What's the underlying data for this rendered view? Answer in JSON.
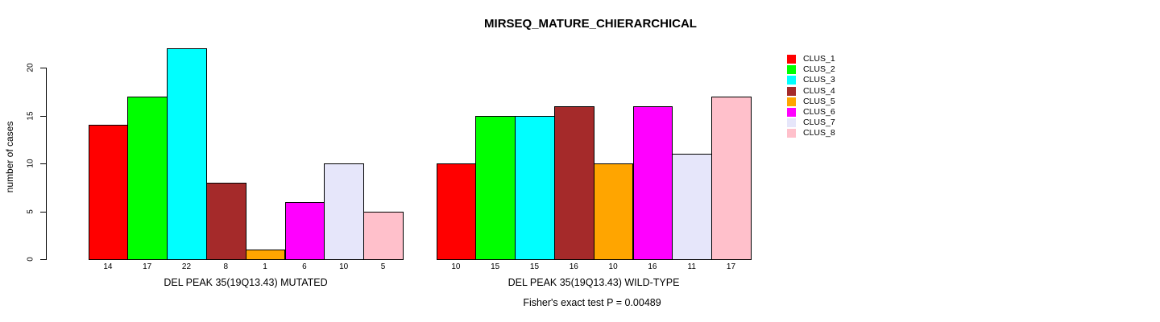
{
  "title": "MIRSEQ_MATURE_CHIERARCHICAL",
  "chart_data": {
    "type": "bar",
    "title": "MIRSEQ_MATURE_CHIERARCHICAL",
    "ylabel": "number of cases",
    "xlabel": "",
    "ylim": [
      0,
      20
    ],
    "yticks": [
      0,
      5,
      10,
      15,
      20
    ],
    "grid": false,
    "bar_value_labels": true,
    "groups": [
      {
        "xlabel": "DEL PEAK 35(19Q13.43) MUTATED",
        "categories": [
          "CLUS_1",
          "CLUS_2",
          "CLUS_3",
          "CLUS_4",
          "CLUS_5",
          "CLUS_6",
          "CLUS_7",
          "CLUS_8"
        ],
        "values": [
          14,
          17,
          22,
          8,
          1,
          6,
          10,
          5
        ]
      },
      {
        "xlabel": "DEL PEAK 35(19Q13.43) WILD-TYPE",
        "categories": [
          "CLUS_1",
          "CLUS_2",
          "CLUS_3",
          "CLUS_4",
          "CLUS_5",
          "CLUS_6",
          "CLUS_7",
          "CLUS_8"
        ],
        "values": [
          10,
          15,
          15,
          16,
          10,
          16,
          11,
          17
        ]
      }
    ],
    "legend": {
      "position": "right",
      "entries": [
        {
          "label": "CLUS_1",
          "color": "#FF0000"
        },
        {
          "label": "CLUS_2",
          "color": "#00FF00"
        },
        {
          "label": "CLUS_3",
          "color": "#00FFFF"
        },
        {
          "label": "CLUS_4",
          "color": "#A52A2A"
        },
        {
          "label": "CLUS_5",
          "color": "#FFA500"
        },
        {
          "label": "CLUS_6",
          "color": "#FF00FF"
        },
        {
          "label": "CLUS_7",
          "color": "#E6E6FA"
        },
        {
          "label": "CLUS_8",
          "color": "#FFC0CB"
        }
      ]
    },
    "annotation": "Fisher's exact test P = 0.00489"
  }
}
